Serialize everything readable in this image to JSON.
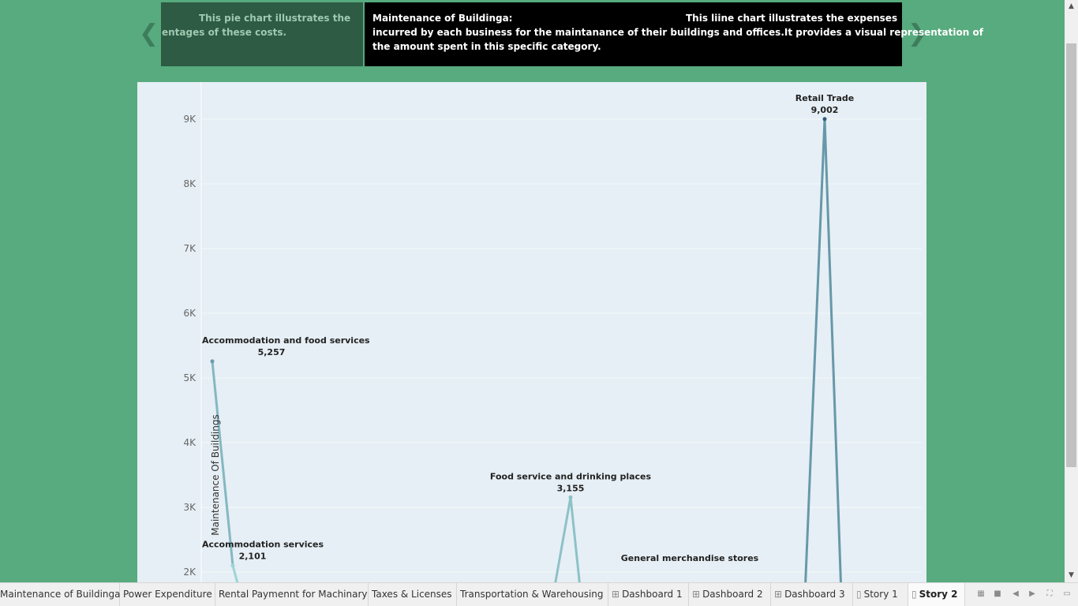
{
  "story_nav": {
    "prev_icon": "chevron-left-icon",
    "next_icon": "chevron-right-icon",
    "prev_caption_line1": "This  pie chart illustrates the",
    "prev_caption_line2": "entages of these costs.",
    "current_title": "Maintenance of Buildinga:",
    "current_line1": "This liine chart illustrates the expenses",
    "current_line2": "incurred by each business for the maintanance of their buildings and offices.It provides a visual representation of",
    "current_line3": "the amount spent in this specific category.",
    "active_bg": "#000000",
    "inactive_bg": "#2d5b43"
  },
  "chart_data": {
    "type": "line",
    "ylabel": "Maintenance Of Buildings",
    "y_ticks": [
      "2K",
      "3K",
      "4K",
      "5K",
      "6K",
      "7K",
      "8K",
      "9K"
    ],
    "points": [
      {
        "category": "Accommodation and food services",
        "value": 5257,
        "label": "5,257",
        "labeled": true
      },
      {
        "category": "Accommodation services",
        "value": 2101,
        "label": "2,101",
        "labeled": true
      },
      {
        "category": "Food service and drinking places",
        "value": 3155,
        "label": "3,155",
        "labeled": true
      },
      {
        "category": "General merchandise stores",
        "value": null,
        "label": "",
        "labeled": true
      },
      {
        "category": "Retail Trade",
        "value": 9002,
        "label": "9,002",
        "labeled": true
      }
    ],
    "grid": true,
    "colors": {
      "low": "#9fd6d6",
      "high": "#2f5b7d",
      "background": "#e6eff5"
    }
  },
  "tabs": [
    {
      "label": "Maintenance of Buildinga",
      "icon": "",
      "active": false
    },
    {
      "label": "Power Expenditure",
      "icon": "",
      "active": false
    },
    {
      "label": "Rental Paymennt for Machinary",
      "icon": "",
      "active": false
    },
    {
      "label": "Taxes & Licenses",
      "icon": "",
      "active": false
    },
    {
      "label": "Transportation & Warehousing",
      "icon": "",
      "active": false
    },
    {
      "label": "Dashboard 1",
      "icon": "dashboard-icon",
      "active": false
    },
    {
      "label": "Dashboard 2",
      "icon": "dashboard-icon",
      "active": false
    },
    {
      "label": "Dashboard 3",
      "icon": "dashboard-icon",
      "active": false
    },
    {
      "label": "Story 1",
      "icon": "story-icon",
      "active": false
    },
    {
      "label": "Story 2",
      "icon": "story-icon",
      "active": true
    }
  ],
  "bottom_controls": [
    "sheet-sorter-icon",
    "filmstrip-icon",
    "scroll-left-icon",
    "scroll-right-icon",
    "fullscreen-icon",
    "presentation-icon"
  ]
}
